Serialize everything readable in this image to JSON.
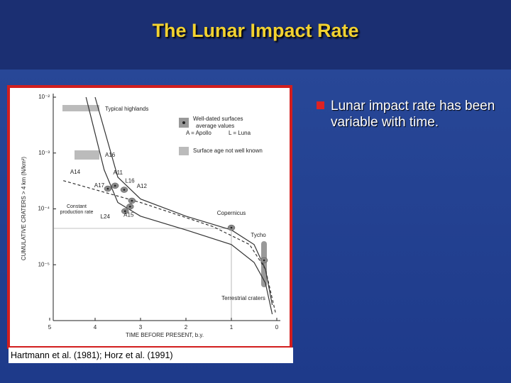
{
  "slide": {
    "title": "The Lunar Impact Rate",
    "bullet": "Lunar impact rate has been variable with time.",
    "citation": "Hartmann et al. (1981); Horz et al. (1991)"
  },
  "chart_data": {
    "type": "line",
    "xlabel": "TIME BEFORE PRESENT, b.y.",
    "ylabel": "CUMULATIVE CRATERS > 4 km (N/km²)",
    "xlim": [
      5,
      0
    ],
    "xticks": [
      5,
      4,
      3,
      2,
      1,
      0
    ],
    "ylim": [
      1e-06,
      0.01
    ],
    "log_y": true,
    "yticks": [
      {
        "value": 0.01,
        "label": "10⁻²"
      },
      {
        "value": 0.001,
        "label": "10⁻³"
      },
      {
        "value": 0.0001,
        "label": "10⁻⁴"
      },
      {
        "value": 1e-05,
        "label": "10⁻⁵"
      }
    ],
    "series": [
      {
        "color": "#333333",
        "style": "solid",
        "x": [
          4.0,
          3.5,
          3.0,
          2.0,
          1.0,
          0.5,
          0.25,
          0.1
        ],
        "values": [
          0.01,
          0.00037,
          0.00015,
          7.4e-05,
          4.2e-05,
          2.3e-05,
          8.3e-06,
          1.9e-06
        ]
      },
      {
        "color": "#333333",
        "style": "solid",
        "x": [
          4.2,
          3.8,
          3.5,
          3.0,
          2.0,
          1.0,
          0.5,
          0.25,
          0.1
        ],
        "values": [
          0.01,
          0.0005,
          0.00013,
          7.4e-05,
          4.2e-05,
          2.3e-05,
          1.1e-05,
          4.7e-06,
          1.3e-06
        ]
      },
      {
        "color": "#333333",
        "style": "dashed",
        "x": [
          4.7,
          3.0,
          1.4,
          0.6,
          0.25,
          0.03
        ],
        "values": [
          0.00032,
          0.00013,
          4.8e-05,
          2.3e-05,
          8.3e-06,
          1.4e-06
        ]
      }
    ],
    "points": {
      "color": "#8a8a8a",
      "labels": [
        "A17",
        "A11",
        "L16",
        "A12",
        "L24",
        "A15",
        "Copernicus",
        "Tycho"
      ],
      "x": [
        3.72,
        3.56,
        3.36,
        3.19,
        3.34,
        3.23,
        1.0,
        0.28
      ],
      "values": [
        0.00023,
        0.00026,
        0.00022,
        0.00014,
        9.1e-05,
        0.00011,
        4.6e-05,
        1.2e-05
      ]
    },
    "annotations": [
      "Typical highlands",
      "A16",
      "A14",
      "Terrestrial craters",
      "Constant production rate"
    ],
    "legend": [
      "Well-dated surfaces",
      "average values",
      "A = Apollo",
      "L = Luna",
      "Surface age not well known"
    ]
  }
}
